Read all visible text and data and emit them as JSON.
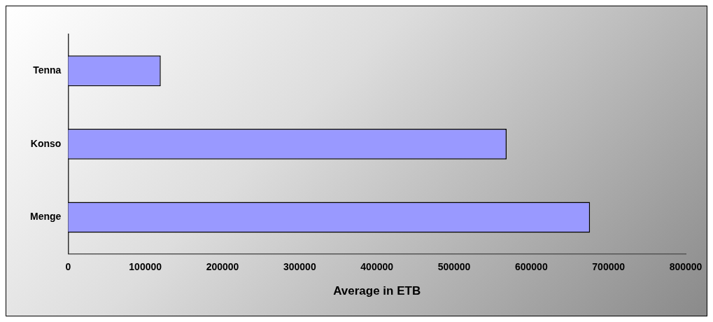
{
  "chart_data": {
    "type": "bar",
    "orientation": "horizontal",
    "xlabel": "Average in ETB",
    "categories": [
      "Tenna",
      "Konso",
      "Menge"
    ],
    "values": [
      120000,
      568000,
      676000
    ],
    "color": "#9999ff",
    "xlim": [
      0,
      800000
    ],
    "xticks": [
      0,
      100000,
      200000,
      300000,
      400000,
      500000,
      600000,
      700000,
      800000
    ],
    "grid": false,
    "legend": false
  }
}
